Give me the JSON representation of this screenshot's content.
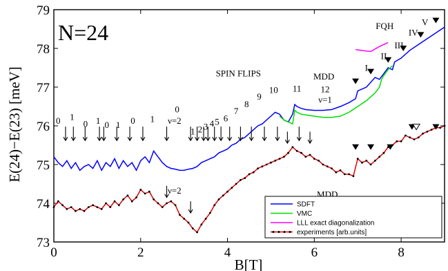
{
  "chart_data": {
    "type": "line",
    "title": "N=24",
    "xlabel": "B[T]",
    "ylabel": "E(24)−E(23) [meV]",
    "xlim": [
      0,
      9
    ],
    "ylim": [
      73,
      79
    ],
    "xticks": [
      "0",
      "2",
      "4",
      "6",
      "8"
    ],
    "yticks": [
      "73",
      "74",
      "75",
      "76",
      "77",
      "78",
      "79"
    ],
    "grid": false,
    "legend_position": "bottom-right",
    "colors": {
      "sdft": "#0000ff",
      "vmc": "#00dd00",
      "lll": "#ff00ff",
      "exp_line": "#dd0000",
      "exp_marker": "#000000"
    },
    "series": [
      {
        "name": "SDFT",
        "x": [
          0,
          0.1,
          0.2,
          0.3,
          0.4,
          0.5,
          0.6,
          0.7,
          0.8,
          0.9,
          1.0,
          1.1,
          1.2,
          1.3,
          1.4,
          1.5,
          1.6,
          1.7,
          1.8,
          1.9,
          2.0,
          2.1,
          2.2,
          2.3,
          2.4,
          2.5,
          2.6,
          2.7,
          2.8,
          2.9,
          3.0,
          3.1,
          3.2,
          3.3,
          3.4,
          3.5,
          3.6,
          3.7,
          3.8,
          3.9,
          4.0,
          4.1,
          4.2,
          4.3,
          4.4,
          4.5,
          4.6,
          4.7,
          4.8,
          4.9,
          5.0,
          5.1,
          5.2,
          5.3,
          5.4,
          5.5,
          5.55,
          5.6,
          5.7,
          5.8,
          6.0,
          6.2,
          6.4,
          6.6,
          6.8,
          6.95,
          7.0,
          7.2,
          7.4,
          7.5,
          7.6,
          7.7,
          7.8,
          7.85,
          8.0,
          8.2,
          8.4,
          8.6,
          8.8,
          9.0
        ],
        "values": [
          75.2,
          75.05,
          74.95,
          75.1,
          74.9,
          75.05,
          74.85,
          74.95,
          75.0,
          74.9,
          75.1,
          74.85,
          75.05,
          74.95,
          75.15,
          74.9,
          75.1,
          74.95,
          75.05,
          74.85,
          75.1,
          75.2,
          75.05,
          75.35,
          75.2,
          75.05,
          74.95,
          74.9,
          74.88,
          74.85,
          74.85,
          74.88,
          74.9,
          74.95,
          75.05,
          75.1,
          75.15,
          75.2,
          75.3,
          75.35,
          75.4,
          75.5,
          75.55,
          75.65,
          75.7,
          75.8,
          75.9,
          76.0,
          76.05,
          76.15,
          76.25,
          76.35,
          76.3,
          76.15,
          76.1,
          76.3,
          76.55,
          76.5,
          76.45,
          76.42,
          76.4,
          76.4,
          76.42,
          76.5,
          76.6,
          76.7,
          76.9,
          77.0,
          77.25,
          77.2,
          77.35,
          77.5,
          77.45,
          77.65,
          77.75,
          77.95,
          78.1,
          78.25,
          78.4,
          78.55
        ]
      },
      {
        "name": "VMC",
        "x": [
          5.2,
          5.3,
          5.4,
          5.5,
          5.55,
          5.6,
          5.7,
          5.8,
          6.0,
          6.2,
          6.4,
          6.6,
          6.8,
          7.0,
          7.2,
          7.4,
          7.5,
          7.55,
          7.6,
          7.7,
          7.8
        ],
        "values": [
          76.25,
          76.15,
          76.1,
          76.05,
          76.4,
          76.35,
          76.3,
          76.28,
          76.25,
          76.22,
          76.22,
          76.25,
          76.35,
          76.5,
          76.65,
          76.85,
          77.0,
          77.2,
          77.3,
          77.45,
          77.55
        ]
      },
      {
        "name": "LLL exact diagonalization",
        "x": [
          6.95,
          7.2,
          7.3,
          7.5,
          7.7
        ],
        "values": [
          77.97,
          77.93,
          77.92,
          78.05,
          78.15
        ]
      },
      {
        "name": "experiments [arb.units]",
        "x": [
          0,
          0.1,
          0.2,
          0.3,
          0.4,
          0.5,
          0.6,
          0.7,
          0.8,
          0.9,
          1.0,
          1.1,
          1.2,
          1.3,
          1.4,
          1.5,
          1.6,
          1.7,
          1.8,
          1.9,
          2.0,
          2.1,
          2.2,
          2.3,
          2.4,
          2.5,
          2.6,
          2.7,
          2.8,
          2.9,
          3.0,
          3.1,
          3.2,
          3.3,
          3.4,
          3.5,
          3.6,
          3.7,
          3.8,
          3.9,
          4.0,
          4.1,
          4.2,
          4.3,
          4.4,
          4.5,
          4.6,
          4.7,
          4.8,
          4.9,
          5.0,
          5.1,
          5.2,
          5.3,
          5.4,
          5.5,
          5.6,
          5.7,
          5.8,
          5.9,
          6.0,
          6.1,
          6.2,
          6.3,
          6.4,
          6.5,
          6.6,
          6.7,
          6.8,
          6.9,
          7.0,
          7.1,
          7.2,
          7.3,
          7.4,
          7.5,
          7.6,
          7.7,
          7.8,
          7.9,
          8.0,
          8.1,
          8.2,
          8.3,
          8.4,
          8.5,
          8.6,
          8.7,
          8.8,
          8.9,
          9.0
        ],
        "values": [
          73.9,
          74.05,
          73.95,
          73.85,
          73.9,
          73.8,
          73.85,
          73.8,
          73.9,
          73.95,
          73.9,
          73.85,
          74.0,
          73.9,
          74.05,
          73.95,
          74.1,
          74.2,
          74.05,
          74.15,
          74.35,
          74.25,
          74.3,
          74.1,
          74.0,
          73.9,
          74.0,
          74.05,
          73.95,
          73.7,
          73.6,
          73.5,
          73.35,
          73.25,
          73.45,
          73.6,
          73.75,
          73.95,
          74.1,
          74.2,
          74.3,
          74.4,
          74.5,
          74.6,
          74.65,
          74.75,
          74.8,
          74.9,
          74.95,
          75.0,
          75.05,
          75.1,
          75.15,
          75.2,
          75.3,
          75.45,
          75.35,
          75.3,
          75.2,
          75.25,
          75.15,
          75.1,
          75.0,
          74.95,
          74.9,
          74.8,
          74.85,
          74.75,
          74.75,
          74.7,
          75.15,
          75.05,
          75.1,
          75.0,
          75.1,
          75.2,
          75.3,
          75.45,
          75.5,
          75.6,
          75.6,
          75.75,
          75.7,
          75.65,
          75.7,
          75.8,
          75.85,
          75.9,
          75.95,
          75.95,
          76.0
        ]
      }
    ],
    "annotations": {
      "upper_numbers": [
        {
          "text": "0",
          "x": 0.1,
          "y": 76.05
        },
        {
          "text": "1",
          "x": 0.42,
          "y": 76.15
        },
        {
          "text": "0",
          "x": 0.73,
          "y": 75.97
        },
        {
          "text": "1",
          "x": 1.02,
          "y": 76.05
        },
        {
          "text": "0",
          "x": 1.22,
          "y": 75.95
        },
        {
          "text": "1",
          "x": 1.48,
          "y": 75.95
        },
        {
          "text": "0",
          "x": 1.82,
          "y": 76.05
        },
        {
          "text": "1",
          "x": 2.27,
          "y": 76.1
        },
        {
          "text": "0",
          "x": 2.84,
          "y": 76.35
        },
        {
          "text": "ν=2",
          "x": 2.78,
          "y": 76.05
        },
        {
          "text": "1",
          "x": 3.2,
          "y": 75.78
        },
        {
          "text": "2",
          "x": 3.37,
          "y": 75.83
        },
        {
          "text": "3",
          "x": 3.5,
          "y": 75.9
        },
        {
          "text": "4",
          "x": 3.64,
          "y": 75.98
        },
        {
          "text": "5",
          "x": 3.76,
          "y": 76.03
        },
        {
          "text": "6",
          "x": 3.96,
          "y": 76.12
        },
        {
          "text": "7",
          "x": 4.2,
          "y": 76.3
        },
        {
          "text": "8",
          "x": 4.44,
          "y": 76.48
        },
        {
          "text": "9",
          "x": 4.73,
          "y": 76.68
        },
        {
          "text": "10",
          "x": 5.06,
          "y": 76.85
        },
        {
          "text": "11",
          "x": 5.6,
          "y": 76.88
        },
        {
          "text": "12",
          "x": 6.25,
          "y": 76.87
        }
      ],
      "labels": [
        {
          "text": "SPIN FLIPS",
          "x": 4.25,
          "y": 77.28
        },
        {
          "text": "MDD",
          "x": 6.22,
          "y": 77.2
        },
        {
          "text": "ν=1",
          "x": 6.25,
          "y": 76.6
        },
        {
          "text": "FQH",
          "x": 7.62,
          "y": 78.5
        },
        {
          "text": "I",
          "x": 7.2,
          "y": 77.42
        },
        {
          "text": "II",
          "x": 7.6,
          "y": 77.72
        },
        {
          "text": "III",
          "x": 7.95,
          "y": 78.0
        },
        {
          "text": "IV",
          "x": 8.28,
          "y": 78.33
        },
        {
          "text": "V",
          "x": 8.55,
          "y": 78.6
        },
        {
          "text": "MDD",
          "x": 6.3,
          "y": 74.15
        },
        {
          "text": "ν=2",
          "x": 2.78,
          "y": 74.25
        }
      ]
    },
    "legend": {
      "entries": [
        "SDFT",
        "VMC",
        "LLL exact diagonalization",
        "experiments [arb.units]"
      ]
    }
  }
}
